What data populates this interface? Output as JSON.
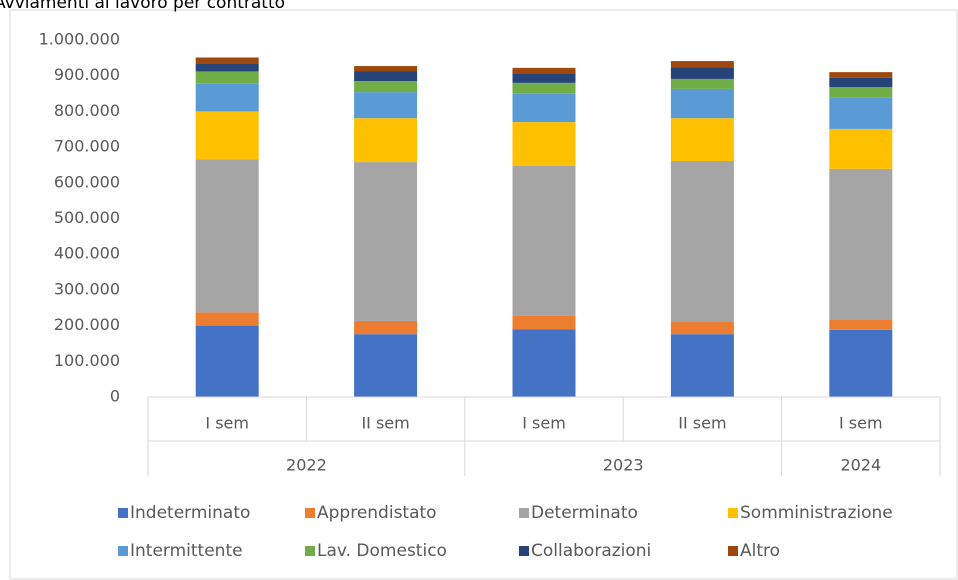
{
  "chart_data": {
    "type": "stacked_bar",
    "title": "Avviamenti al lavoro per contratto",
    "category_groups": [
      {
        "label": "2022",
        "categories": [
          "I sem",
          "II sem"
        ]
      },
      {
        "label": "2023",
        "categories": [
          "I sem",
          "II sem"
        ]
      },
      {
        "label": "2024",
        "categories": [
          "I sem"
        ]
      }
    ],
    "series": [
      {
        "name": "Indeterminato",
        "color": "#4472c4",
        "values": [
          200000,
          176000,
          190000,
          176000,
          188000
        ]
      },
      {
        "name": "Apprendistato",
        "color": "#ed7d31",
        "values": [
          37000,
          37000,
          37000,
          34000,
          30000
        ]
      },
      {
        "name": "Determinato",
        "color": "#a5a5a5",
        "values": [
          429000,
          445000,
          420000,
          451000,
          421000
        ]
      },
      {
        "name": "Somministrazione",
        "color": "#ffc000",
        "values": [
          134000,
          123000,
          123000,
          120000,
          112000
        ]
      },
      {
        "name": "Intermittente",
        "color": "#5b9bd5",
        "values": [
          79000,
          73000,
          81000,
          82000,
          87000
        ]
      },
      {
        "name": "Lav. Domestico",
        "color": "#70ad47",
        "values": [
          33000,
          31000,
          29000,
          28000,
          30000
        ]
      },
      {
        "name": "Collaborazioni",
        "color": "#264478",
        "values": [
          23000,
          28000,
          27000,
          33000,
          26000
        ]
      },
      {
        "name": "Altro",
        "color": "#9e480e",
        "values": [
          16000,
          14000,
          15000,
          17000,
          16000
        ]
      }
    ],
    "ylim": [
      0,
      1000000
    ],
    "yticks": [
      0,
      {
        "value": 100000,
        "label": "100.000"
      },
      {
        "value": 200000,
        "label": "200.000"
      },
      {
        "value": 300000,
        "label": "300.000"
      },
      {
        "value": 400000,
        "label": "400.000"
      },
      {
        "value": 500000,
        "label": "500.000"
      },
      {
        "value": 600000,
        "label": "600.000"
      },
      {
        "value": 700000,
        "label": "700.000"
      },
      {
        "value": 800000,
        "label": "800.000"
      },
      {
        "value": 900000,
        "label": "900.000"
      },
      {
        "value": 1000000,
        "label": "1.000.000"
      }
    ],
    "legend": "bottom"
  }
}
